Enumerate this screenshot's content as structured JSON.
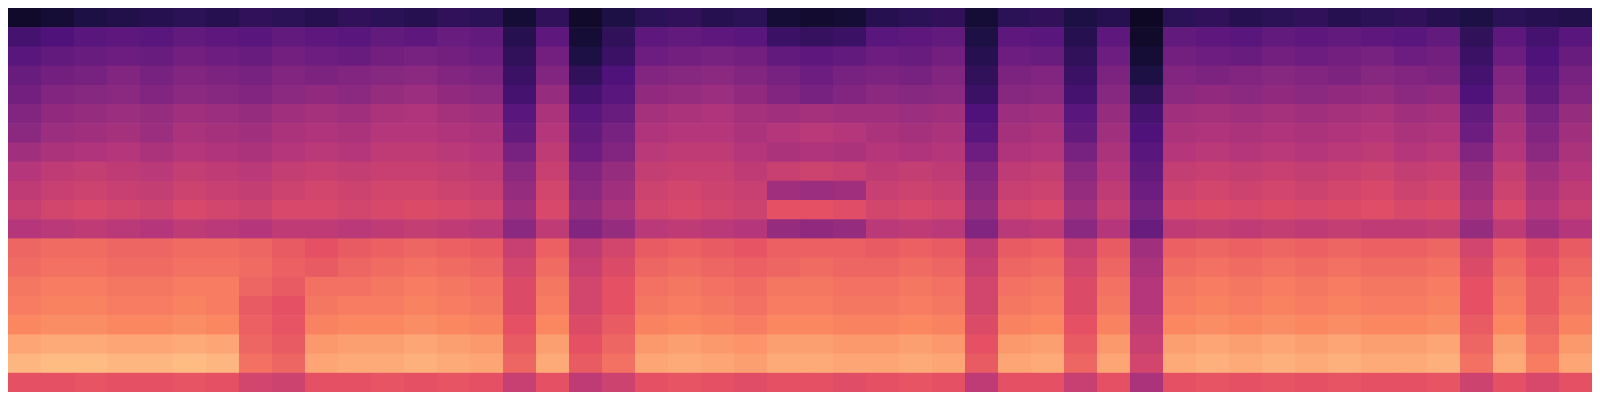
{
  "chart_data": {
    "type": "heatmap",
    "tick_labels": false,
    "color": "magma",
    "zlim": [
      -80,
      0
    ],
    "z": [
      [
        -74,
        -72,
        -70,
        -69,
        -68,
        -67,
        -68,
        -66,
        -67,
        -68,
        -66,
        -67,
        -68,
        -66,
        -67,
        -72,
        -66,
        -74,
        -70,
        -67,
        -66,
        -68,
        -67,
        -72,
        -73,
        -72,
        -68,
        -67,
        -66,
        -72,
        -67,
        -66,
        -70,
        -68,
        -75,
        -67,
        -66,
        -68,
        -67,
        -66,
        -68,
        -67,
        -66,
        -68,
        -70,
        -67,
        -68,
        -69
      ],
      [
        -62,
        -60,
        -58,
        -57,
        -58,
        -56,
        -57,
        -58,
        -56,
        -57,
        -58,
        -56,
        -57,
        -55,
        -56,
        -68,
        -57,
        -72,
        -66,
        -57,
        -56,
        -57,
        -58,
        -64,
        -65,
        -64,
        -58,
        -57,
        -56,
        -70,
        -57,
        -58,
        -68,
        -57,
        -74,
        -56,
        -57,
        -58,
        -56,
        -57,
        -56,
        -57,
        -58,
        -56,
        -66,
        -57,
        -62,
        -58
      ],
      [
        -58,
        -56,
        -55,
        -54,
        -55,
        -53,
        -54,
        -55,
        -53,
        -54,
        -55,
        -53,
        -52,
        -53,
        -54,
        -66,
        -53,
        -70,
        -64,
        -54,
        -53,
        -52,
        -53,
        -56,
        -57,
        -56,
        -54,
        -55,
        -53,
        -68,
        -54,
        -55,
        -66,
        -54,
        -72,
        -53,
        -54,
        -55,
        -53,
        -54,
        -53,
        -52,
        -54,
        -53,
        -64,
        -54,
        -60,
        -55
      ],
      [
        -55,
        -53,
        -52,
        -50,
        -52,
        -50,
        -51,
        -52,
        -50,
        -51,
        -50,
        -49,
        -48,
        -50,
        -51,
        -64,
        -50,
        -66,
        -60,
        -50,
        -49,
        -48,
        -50,
        -52,
        -54,
        -52,
        -51,
        -52,
        -50,
        -66,
        -51,
        -50,
        -64,
        -51,
        -70,
        -50,
        -51,
        -50,
        -49,
        -50,
        -51,
        -49,
        -50,
        -51,
        -62,
        -50,
        -58,
        -52
      ],
      [
        -53,
        -50,
        -49,
        -48,
        -50,
        -48,
        -49,
        -50,
        -48,
        -47,
        -48,
        -46,
        -45,
        -47,
        -48,
        -62,
        -46,
        -62,
        -58,
        -47,
        -46,
        -45,
        -47,
        -50,
        -52,
        -50,
        -48,
        -49,
        -48,
        -64,
        -49,
        -48,
        -62,
        -49,
        -66,
        -48,
        -47,
        -48,
        -47,
        -48,
        -47,
        -46,
        -48,
        -47,
        -60,
        -48,
        -56,
        -50
      ],
      [
        -50,
        -47,
        -46,
        -45,
        -46,
        -44,
        -45,
        -46,
        -44,
        -43,
        -44,
        -42,
        -41,
        -43,
        -44,
        -58,
        -42,
        -58,
        -55,
        -43,
        -42,
        -41,
        -43,
        -44,
        -43,
        -44,
        -44,
        -45,
        -44,
        -60,
        -45,
        -44,
        -58,
        -46,
        -62,
        -44,
        -43,
        -44,
        -43,
        -44,
        -43,
        -42,
        -44,
        -43,
        -56,
        -44,
        -52,
        -46
      ],
      [
        -48,
        -45,
        -44,
        -43,
        -45,
        -42,
        -43,
        -44,
        -42,
        -41,
        -42,
        -40,
        -40,
        -41,
        -42,
        -56,
        -40,
        -56,
        -52,
        -41,
        -40,
        -40,
        -42,
        -40,
        -39,
        -40,
        -42,
        -43,
        -42,
        -58,
        -43,
        -42,
        -56,
        -44,
        -60,
        -42,
        -41,
        -42,
        -41,
        -42,
        -41,
        -40,
        -42,
        -41,
        -54,
        -42,
        -50,
        -44
      ],
      [
        -44,
        -42,
        -41,
        -40,
        -42,
        -40,
        -41,
        -42,
        -40,
        -39,
        -40,
        -38,
        -38,
        -39,
        -40,
        -52,
        -38,
        -54,
        -50,
        -39,
        -38,
        -38,
        -40,
        -42,
        -41,
        -42,
        -40,
        -41,
        -40,
        -54,
        -41,
        -40,
        -52,
        -42,
        -58,
        -40,
        -39,
        -40,
        -39,
        -40,
        -39,
        -38,
        -40,
        -39,
        -50,
        -40,
        -48,
        -42
      ],
      [
        -40,
        -38,
        -37,
        -38,
        -39,
        -37,
        -38,
        -39,
        -37,
        -36,
        -37,
        -36,
        -36,
        -37,
        -38,
        -48,
        -36,
        -50,
        -46,
        -37,
        -36,
        -36,
        -38,
        -36,
        -35,
        -36,
        -38,
        -37,
        -38,
        -50,
        -38,
        -37,
        -48,
        -40,
        -56,
        -37,
        -36,
        -37,
        -36,
        -37,
        -36,
        -35,
        -37,
        -36,
        -46,
        -37,
        -44,
        -40
      ],
      [
        -38,
        -36,
        -35,
        -36,
        -37,
        -35,
        -36,
        -37,
        -35,
        -34,
        -35,
        -34,
        -34,
        -35,
        -36,
        -46,
        -34,
        -48,
        -44,
        -35,
        -34,
        -35,
        -36,
        -44,
        -45,
        -44,
        -36,
        -35,
        -36,
        -48,
        -36,
        -35,
        -46,
        -38,
        -54,
        -35,
        -34,
        -35,
        -34,
        -35,
        -34,
        -33,
        -35,
        -34,
        -44,
        -35,
        -42,
        -38
      ],
      [
        -36,
        -34,
        -33,
        -34,
        -35,
        -33,
        -34,
        -35,
        -33,
        -33,
        -34,
        -33,
        -32,
        -33,
        -34,
        -44,
        -33,
        -46,
        -42,
        -34,
        -33,
        -34,
        -35,
        -30,
        -30,
        -31,
        -34,
        -33,
        -34,
        -46,
        -34,
        -33,
        -44,
        -36,
        -52,
        -33,
        -32,
        -33,
        -32,
        -33,
        -32,
        -31,
        -33,
        -32,
        -42,
        -33,
        -40,
        -36
      ],
      [
        -40,
        -39,
        -38,
        -39,
        -40,
        -38,
        -39,
        -40,
        -38,
        -38,
        -39,
        -38,
        -37,
        -38,
        -39,
        -48,
        -38,
        -50,
        -46,
        -39,
        -38,
        -39,
        -40,
        -46,
        -47,
        -46,
        -39,
        -38,
        -39,
        -50,
        -39,
        -38,
        -48,
        -40,
        -55,
        -38,
        -37,
        -38,
        -37,
        -38,
        -37,
        -38,
        -38,
        -37,
        -46,
        -38,
        -44,
        -40
      ],
      [
        -26,
        -25,
        -25,
        -26,
        -26,
        -25,
        -25,
        -26,
        -28,
        -30,
        -28,
        -27,
        -26,
        -27,
        -28,
        -36,
        -27,
        -38,
        -34,
        -28,
        -27,
        -28,
        -29,
        -27,
        -27,
        -27,
        -28,
        -27,
        -28,
        -38,
        -28,
        -27,
        -36,
        -28,
        -44,
        -27,
        -26,
        -27,
        -26,
        -27,
        -26,
        -27,
        -27,
        -26,
        -34,
        -27,
        -32,
        -28
      ],
      [
        -25,
        -24,
        -24,
        -25,
        -25,
        -24,
        -24,
        -25,
        -27,
        -28,
        -26,
        -25,
        -24,
        -25,
        -26,
        -34,
        -25,
        -36,
        -32,
        -26,
        -25,
        -26,
        -27,
        -26,
        -25,
        -26,
        -26,
        -25,
        -26,
        -36,
        -26,
        -25,
        -34,
        -26,
        -42,
        -25,
        -24,
        -25,
        -24,
        -25,
        -24,
        -25,
        -25,
        -24,
        -32,
        -25,
        -30,
        -26
      ],
      [
        -23,
        -22,
        -22,
        -23,
        -23,
        -22,
        -22,
        -26,
        -28,
        -24,
        -24,
        -23,
        -22,
        -23,
        -24,
        -32,
        -23,
        -34,
        -30,
        -24,
        -23,
        -24,
        -25,
        -23,
        -23,
        -24,
        -24,
        -23,
        -24,
        -34,
        -24,
        -23,
        -32,
        -24,
        -40,
        -23,
        -22,
        -23,
        -22,
        -23,
        -22,
        -23,
        -23,
        -22,
        -30,
        -23,
        -28,
        -24
      ],
      [
        -22,
        -21,
        -21,
        -22,
        -22,
        -21,
        -22,
        -28,
        -30,
        -23,
        -22,
        -22,
        -21,
        -22,
        -23,
        -32,
        -22,
        -34,
        -30,
        -23,
        -22,
        -23,
        -24,
        -22,
        -22,
        -23,
        -23,
        -22,
        -23,
        -34,
        -23,
        -22,
        -32,
        -23,
        -40,
        -22,
        -21,
        -22,
        -21,
        -22,
        -21,
        -22,
        -22,
        -21,
        -30,
        -22,
        -28,
        -23
      ],
      [
        -20,
        -19,
        -19,
        -20,
        -20,
        -19,
        -20,
        -27,
        -29,
        -21,
        -20,
        -20,
        -19,
        -20,
        -21,
        -30,
        -20,
        -32,
        -28,
        -21,
        -20,
        -21,
        -22,
        -20,
        -20,
        -21,
        -21,
        -20,
        -21,
        -32,
        -21,
        -20,
        -30,
        -21,
        -38,
        -20,
        -19,
        -20,
        -19,
        -20,
        -19,
        -20,
        -20,
        -19,
        -28,
        -20,
        -26,
        -21
      ],
      [
        -15,
        -14,
        -14,
        -15,
        -15,
        -14,
        -15,
        -26,
        -28,
        -17,
        -16,
        -16,
        -15,
        -16,
        -17,
        -28,
        -16,
        -30,
        -26,
        -17,
        -16,
        -17,
        -18,
        -16,
        -16,
        -17,
        -17,
        -16,
        -17,
        -30,
        -17,
        -16,
        -28,
        -17,
        -36,
        -16,
        -15,
        -16,
        -15,
        -16,
        -15,
        -16,
        -16,
        -15,
        -26,
        -16,
        -24,
        -17
      ],
      [
        -12,
        -11,
        -11,
        -12,
        -12,
        -11,
        -12,
        -24,
        -26,
        -15,
        -14,
        -14,
        -13,
        -14,
        -15,
        -26,
        -14,
        -28,
        -24,
        -15,
        -14,
        -15,
        -16,
        -14,
        -14,
        -15,
        -15,
        -14,
        -15,
        -28,
        -15,
        -14,
        -26,
        -15,
        -34,
        -14,
        -13,
        -14,
        -13,
        -14,
        -13,
        -14,
        -14,
        -13,
        -24,
        -14,
        -22,
        -15
      ],
      [
        -30,
        -30,
        -29,
        -30,
        -30,
        -29,
        -30,
        -34,
        -35,
        -30,
        -30,
        -29,
        -30,
        -29,
        -30,
        -36,
        -30,
        -38,
        -35,
        -30,
        -29,
        -30,
        -31,
        -30,
        -30,
        -31,
        -30,
        -29,
        -30,
        -38,
        -30,
        -30,
        -36,
        -30,
        -42,
        -30,
        -29,
        -30,
        -29,
        -30,
        -29,
        -30,
        -30,
        -29,
        -35,
        -30,
        -33,
        -30
      ]
    ]
  }
}
